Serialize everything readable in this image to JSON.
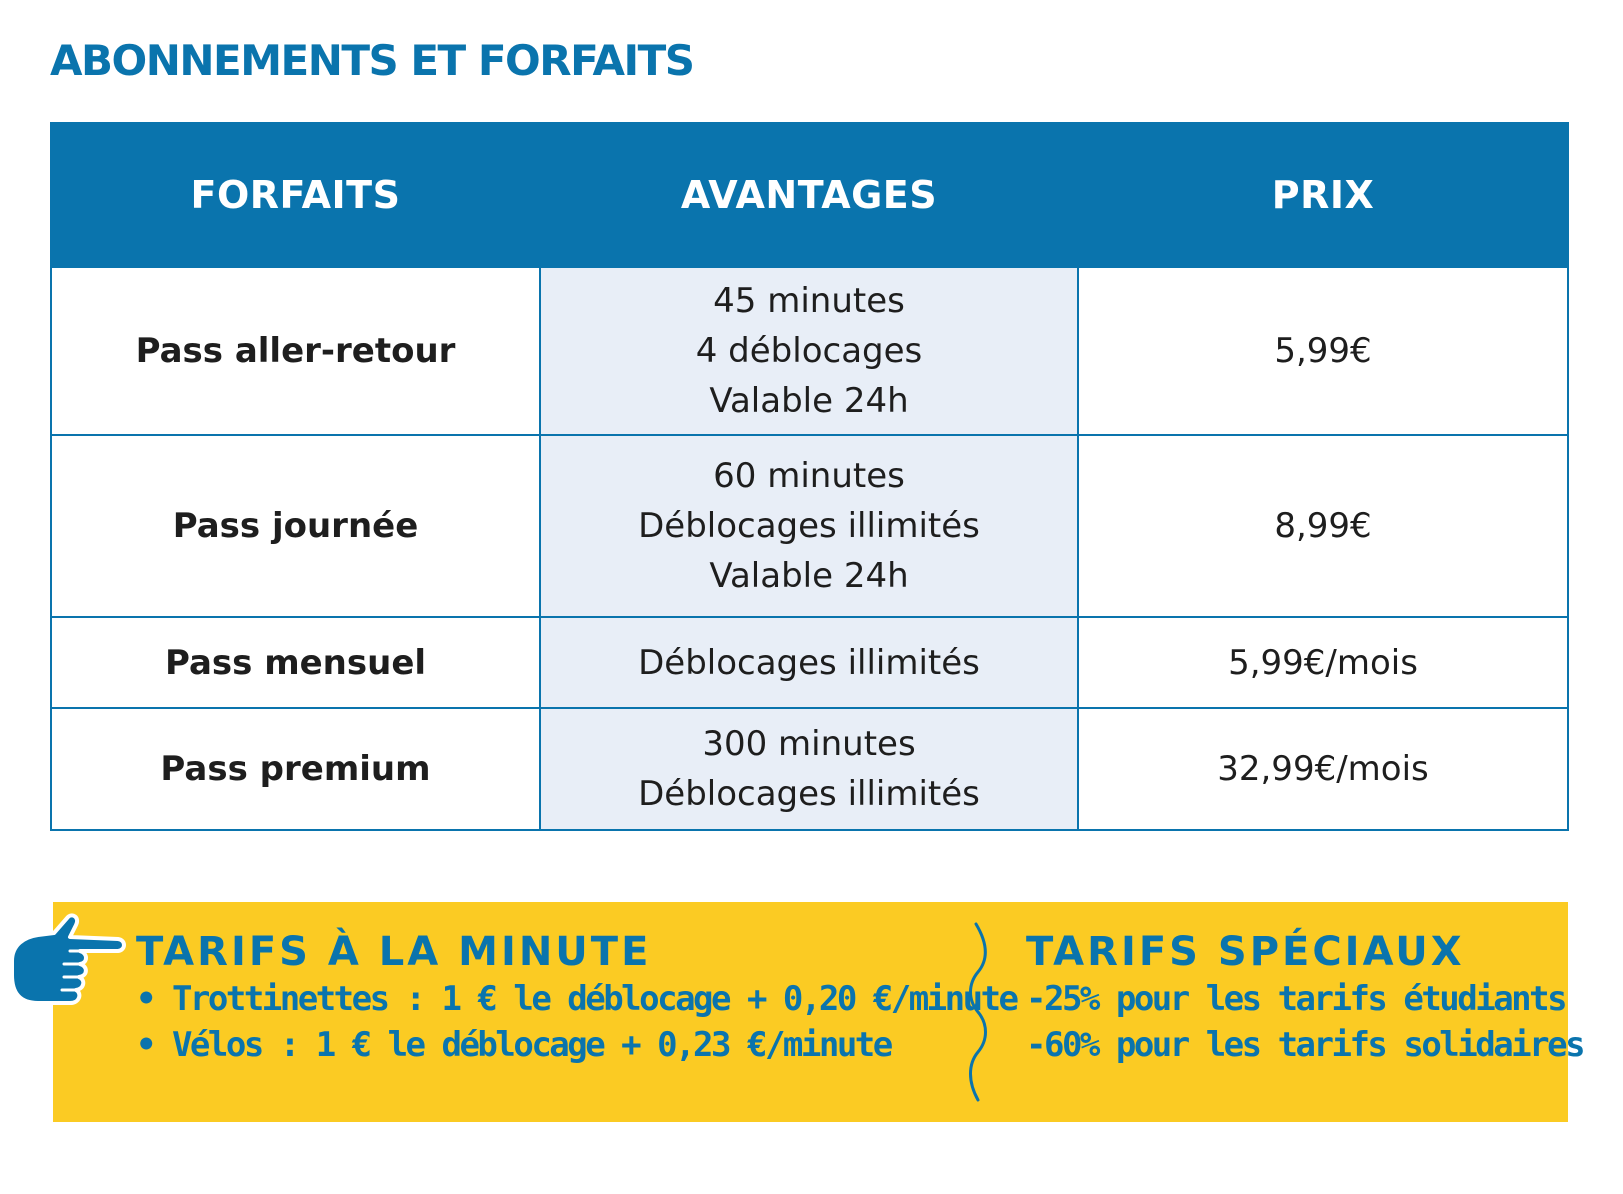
{
  "title": "ABONNEMENTS ET FORFAITS",
  "table": {
    "headers": [
      "FORFAITS",
      "AVANTAGES",
      "PRIX"
    ],
    "rows": [
      {
        "name": "Pass aller-retour",
        "advantages": [
          "45 minutes",
          "4 déblocages",
          "Valable 24h"
        ],
        "price": "5,99€"
      },
      {
        "name": "Pass journée",
        "advantages": [
          "60 minutes",
          "Déblocages illimités",
          "Valable 24h"
        ],
        "price": "8,99€"
      },
      {
        "name": "Pass mensuel",
        "advantages": [
          "Déblocages illimités"
        ],
        "price": "5,99€/mois"
      },
      {
        "name": "Pass premium",
        "advantages": [
          "300 minutes",
          "Déblocages illimités"
        ],
        "price": "32,99€/mois"
      }
    ]
  },
  "banner": {
    "minute_title": "TARIFS À LA MINUTE",
    "minute_lines": [
      "• Trottinettes : 1 € le déblocage + 0,20 €/minute",
      "• Vélos : 1 € le déblocage + 0,23 €/minute"
    ],
    "special_title": "TARIFS SPÉCIAUX",
    "special_lines": [
      "-25% pour les tarifs étudiants",
      "-60% pour les tarifs solidaires"
    ],
    "icon": "pointing-hand-icon"
  },
  "colors": {
    "brand_blue": "#0a74ad",
    "advantage_cell_bg": "#e8eef7",
    "banner_yellow": "#fbcb23",
    "text_dark": "#1e1e1e"
  }
}
